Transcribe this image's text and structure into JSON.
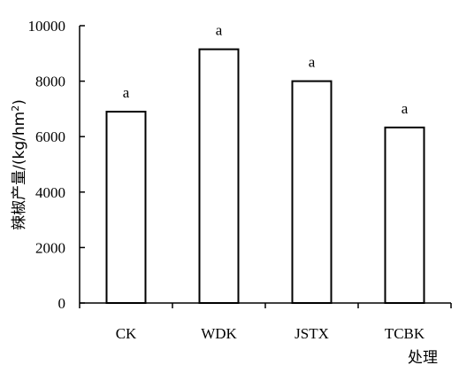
{
  "chart_data": {
    "type": "bar",
    "categories": [
      "CK",
      "WDK",
      "JSTX",
      "TCBK"
    ],
    "values": [
      6900,
      9150,
      8000,
      6330
    ],
    "data_labels": [
      "a",
      "a",
      "a",
      "a"
    ],
    "title": "",
    "xlabel": "处理",
    "ylabel": "辣椒产量/(kg/hm",
    "ylabel_superscript": "2",
    "ylabel_suffix": ")",
    "ylim": [
      0,
      10000
    ],
    "yticks": [
      0,
      2000,
      4000,
      6000,
      8000,
      10000
    ],
    "ytick_labels": [
      "0",
      "2000",
      "4000",
      "6000",
      "8000",
      "10000"
    ],
    "grid": false,
    "legend": "none",
    "colors": {
      "bar_fill": "#ffffff",
      "bar_stroke": "#000000"
    }
  }
}
